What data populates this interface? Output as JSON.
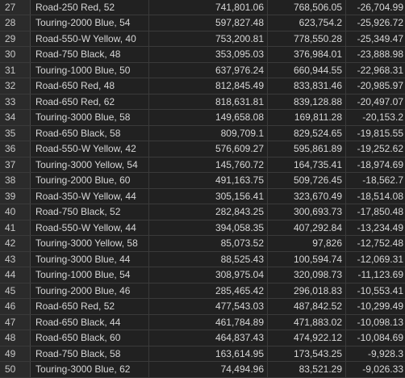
{
  "rows": [
    {
      "num": "27",
      "name": "Road-250 Red, 52",
      "a": "741,801.06",
      "b": "768,506.05",
      "c": "-26,704.99"
    },
    {
      "num": "28",
      "name": "Touring-2000 Blue, 54",
      "a": "597,827.48",
      "b": "623,754.2",
      "c": "-25,926.72"
    },
    {
      "num": "29",
      "name": "Road-550-W Yellow, 40",
      "a": "753,200.81",
      "b": "778,550.28",
      "c": "-25,349.47"
    },
    {
      "num": "30",
      "name": "Road-750 Black, 48",
      "a": "353,095.03",
      "b": "376,984.01",
      "c": "-23,888.98"
    },
    {
      "num": "31",
      "name": "Touring-1000 Blue, 50",
      "a": "637,976.24",
      "b": "660,944.55",
      "c": "-22,968.31"
    },
    {
      "num": "32",
      "name": "Road-650 Red, 48",
      "a": "812,845.49",
      "b": "833,831.46",
      "c": "-20,985.97"
    },
    {
      "num": "33",
      "name": "Road-650 Red, 62",
      "a": "818,631.81",
      "b": "839,128.88",
      "c": "-20,497.07"
    },
    {
      "num": "34",
      "name": "Touring-3000 Blue, 58",
      "a": "149,658.08",
      "b": "169,811.28",
      "c": "-20,153.2"
    },
    {
      "num": "35",
      "name": "Road-650 Black, 58",
      "a": "809,709.1",
      "b": "829,524.65",
      "c": "-19,815.55"
    },
    {
      "num": "36",
      "name": "Road-550-W Yellow, 42",
      "a": "576,609.27",
      "b": "595,861.89",
      "c": "-19,252.62"
    },
    {
      "num": "37",
      "name": "Touring-3000 Yellow, 54",
      "a": "145,760.72",
      "b": "164,735.41",
      "c": "-18,974.69"
    },
    {
      "num": "38",
      "name": "Touring-2000 Blue, 60",
      "a": "491,163.75",
      "b": "509,726.45",
      "c": "-18,562.7"
    },
    {
      "num": "39",
      "name": "Road-350-W Yellow, 44",
      "a": "305,156.41",
      "b": "323,670.49",
      "c": "-18,514.08"
    },
    {
      "num": "40",
      "name": "Road-750 Black, 52",
      "a": "282,843.25",
      "b": "300,693.73",
      "c": "-17,850.48"
    },
    {
      "num": "41",
      "name": "Road-550-W Yellow, 44",
      "a": "394,058.35",
      "b": "407,292.84",
      "c": "-13,234.49"
    },
    {
      "num": "42",
      "name": "Touring-3000 Yellow, 58",
      "a": "85,073.52",
      "b": "97,826",
      "c": "-12,752.48"
    },
    {
      "num": "43",
      "name": "Touring-3000 Blue, 44",
      "a": "88,525.43",
      "b": "100,594.74",
      "c": "-12,069.31"
    },
    {
      "num": "44",
      "name": "Touring-1000 Blue, 54",
      "a": "308,975.04",
      "b": "320,098.73",
      "c": "-11,123.69"
    },
    {
      "num": "45",
      "name": "Touring-2000 Blue, 46",
      "a": "285,465.42",
      "b": "296,018.83",
      "c": "-10,553.41"
    },
    {
      "num": "46",
      "name": "Road-650 Red, 52",
      "a": "477,543.03",
      "b": "487,842.52",
      "c": "-10,299.49"
    },
    {
      "num": "47",
      "name": "Road-650 Black, 44",
      "a": "461,784.89",
      "b": "471,883.02",
      "c": "-10,098.13"
    },
    {
      "num": "48",
      "name": "Road-650 Black, 60",
      "a": "464,837.43",
      "b": "474,922.12",
      "c": "-10,084.69"
    },
    {
      "num": "49",
      "name": "Road-750 Black, 58",
      "a": "163,614.95",
      "b": "173,543.25",
      "c": "-9,928.3"
    },
    {
      "num": "50",
      "name": "Touring-3000 Blue, 62",
      "a": "74,494.96",
      "b": "83,521.29",
      "c": "-9,026.33"
    }
  ]
}
